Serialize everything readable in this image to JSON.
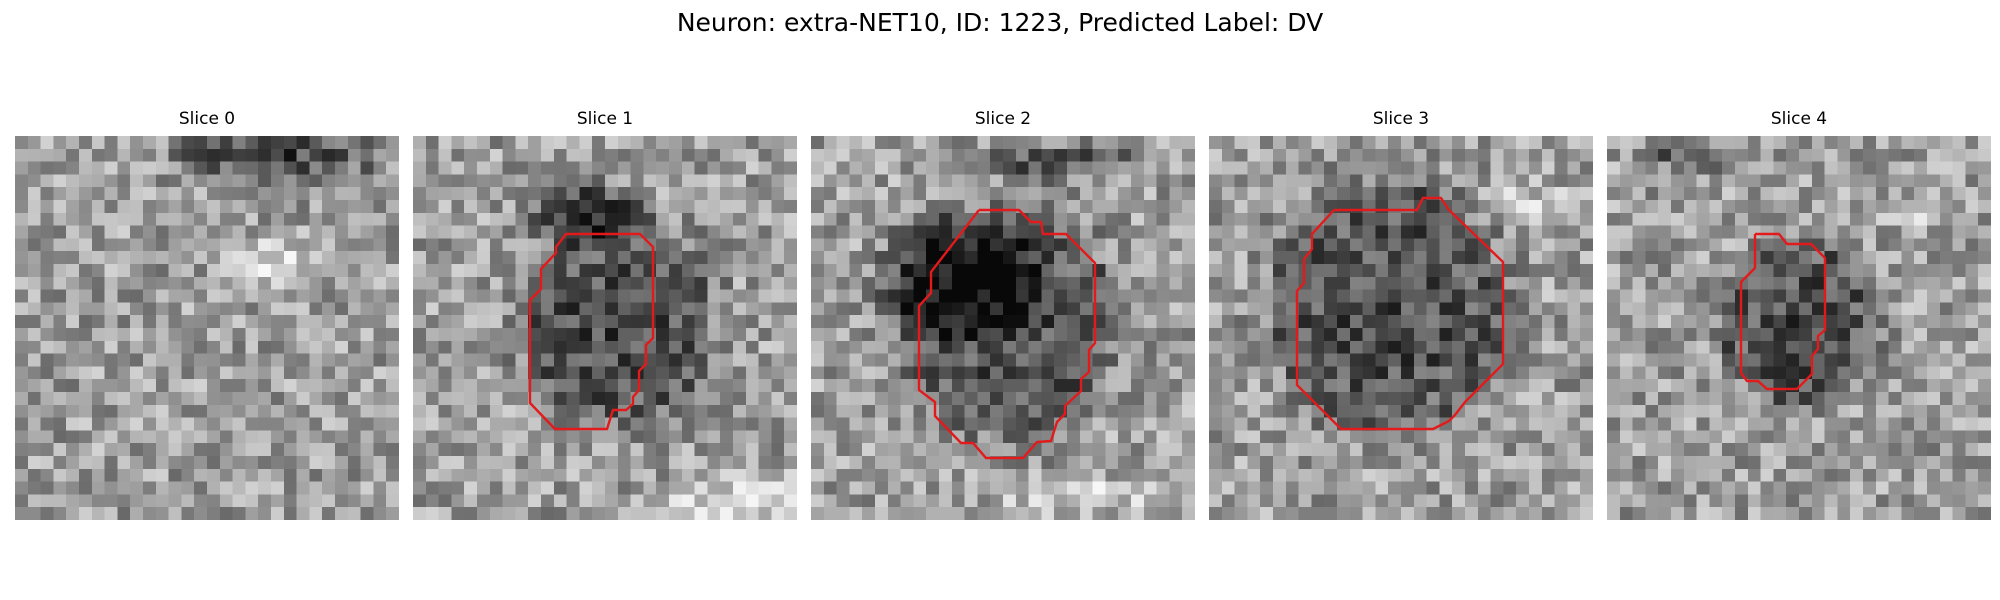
{
  "figure": {
    "title": "Neuron: extra-NET10, ID: 1223, Predicted Label: DV"
  },
  "panels": [
    {
      "title": "Slice 0",
      "has_contour": false
    },
    {
      "title": "Slice 1",
      "has_contour": true
    },
    {
      "title": "Slice 2",
      "has_contour": true
    },
    {
      "title": "Slice 3",
      "has_contour": true
    },
    {
      "title": "Slice 4",
      "has_contour": true
    }
  ],
  "colors": {
    "contour": "#e31a1c"
  }
}
